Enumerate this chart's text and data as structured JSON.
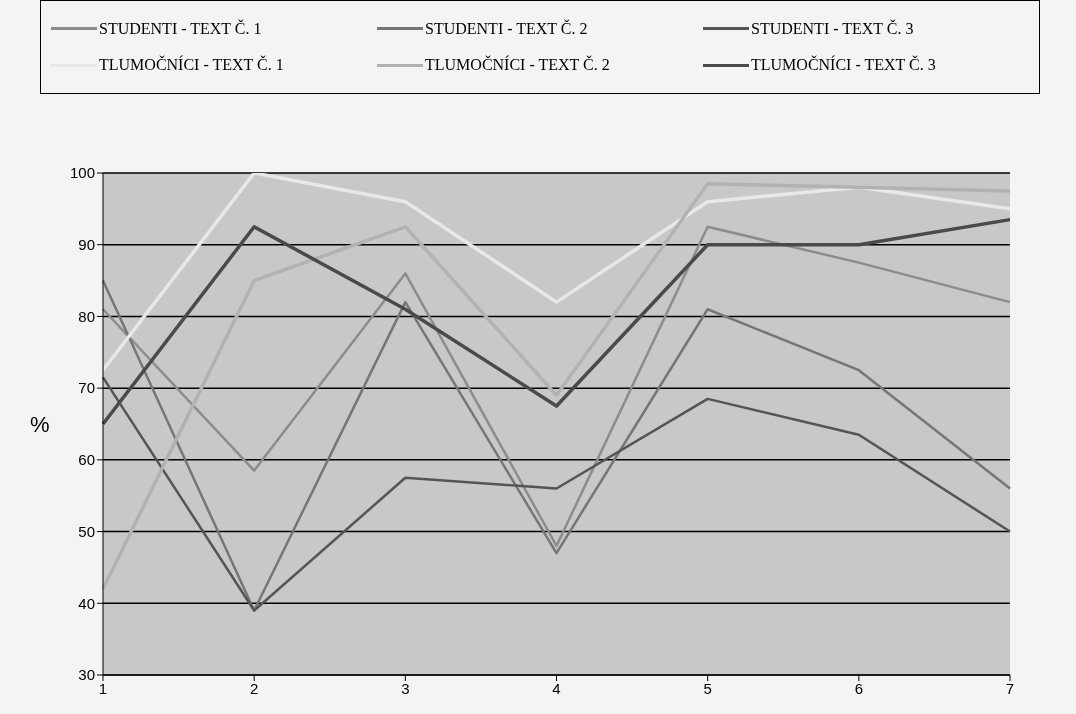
{
  "chart_data": {
    "type": "line",
    "ylabel": "%",
    "categories": [
      "1",
      "2",
      "3",
      "4",
      "5",
      "6",
      "7"
    ],
    "series": [
      {
        "name": "STUDENTI - TEXT Č. 1",
        "color": "#8c8c8c",
        "values": [
          81,
          58.5,
          86,
          48,
          92.5,
          87.5,
          82
        ]
      },
      {
        "name": "STUDENTI - TEXT Č. 2",
        "color": "#767676",
        "values": [
          85,
          39,
          82,
          47,
          81,
          72.5,
          56
        ]
      },
      {
        "name": "STUDENTI - TEXT Č. 3",
        "color": "#555555",
        "values": [
          71.5,
          39,
          57.5,
          56,
          68.5,
          63.5,
          50
        ]
      },
      {
        "name": "TLUMOČNÍCI - TEXT Č. 1",
        "color": "#e8e8e8",
        "values": [
          72.5,
          100,
          96,
          82,
          96,
          98,
          95
        ]
      },
      {
        "name": "TLUMOČNÍCI - TEXT Č. 2",
        "color": "#b2b2b2",
        "values": [
          42,
          85,
          92.5,
          69,
          98.5,
          98,
          97.5
        ]
      },
      {
        "name": "TLUMOČNÍCI - TEXT Č. 3",
        "color": "#4a4a4a",
        "values": [
          65,
          92.5,
          81,
          67.5,
          90,
          90,
          93.5
        ]
      }
    ],
    "ylim": [
      30,
      100
    ],
    "yticks": [
      30,
      40,
      50,
      60,
      70,
      80,
      90,
      100
    ],
    "grid": "y",
    "legend": "top",
    "marker": "none",
    "line_style": "solid"
  }
}
